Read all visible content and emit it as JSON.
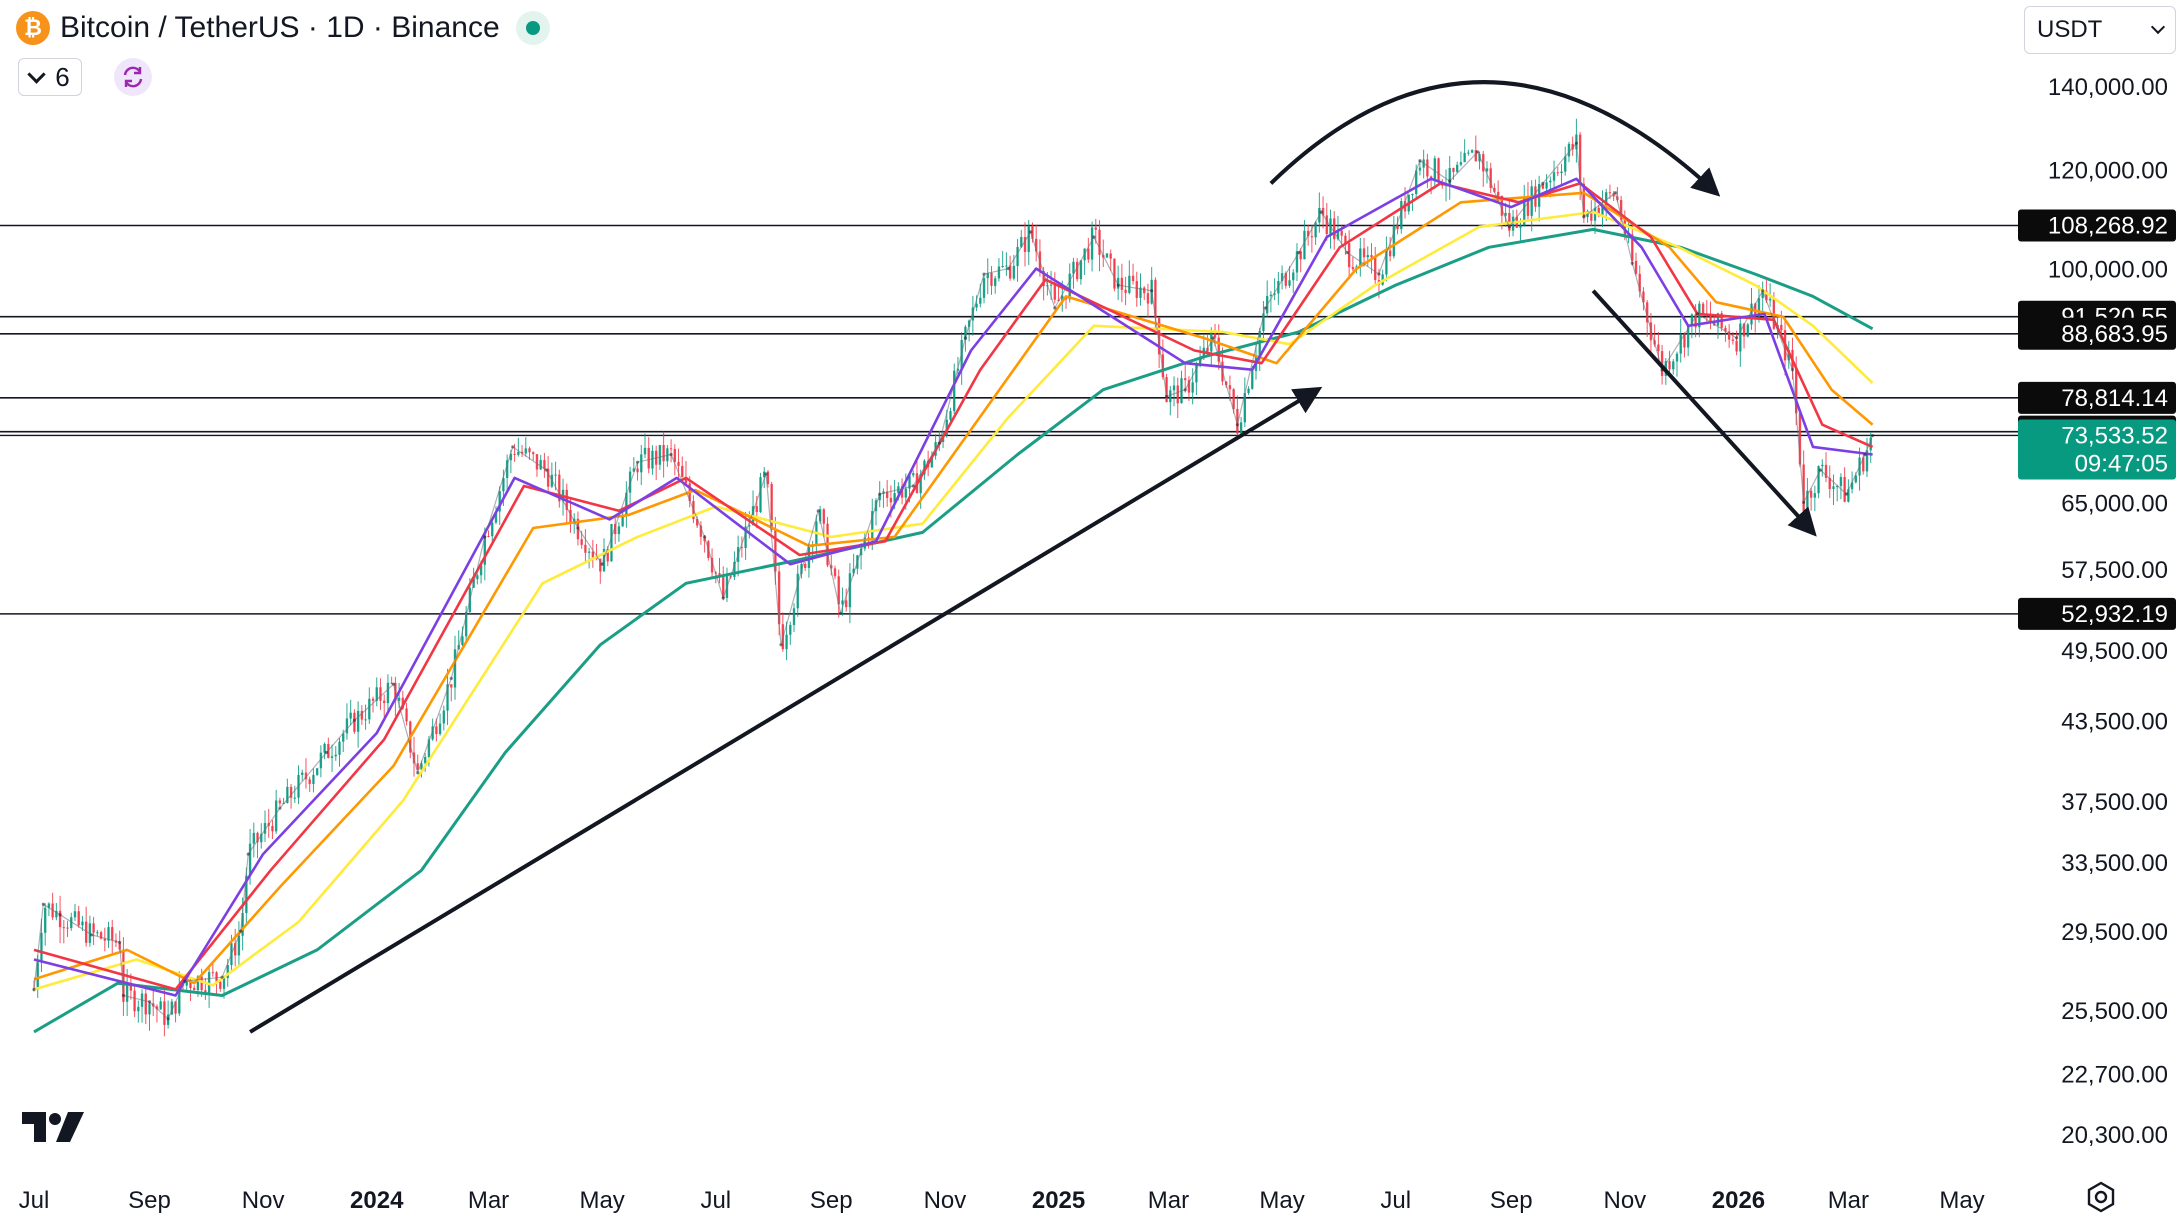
{
  "header": {
    "title": "Bitcoin / TetherUS · 1D · Binance",
    "collapse_count": "6",
    "currency": "USDT"
  },
  "icons": {
    "logo": "bitcoin-logo-icon",
    "live": "market-open-dot-icon",
    "collapse": "chevron-down-icon",
    "sync": "sync-icon",
    "brand": "tradingview-logo-icon",
    "settings": "gear-icon"
  },
  "colors": {
    "ema_fast": "#7b3fe4",
    "ema_mid": "#f23645",
    "ema_orange": "#ff9800",
    "ema_yellow": "#ffeb3b",
    "ema_slow": "#1b9e86",
    "up_candle": "#089981",
    "down_candle": "#f23645",
    "current_price_bg": "#089981"
  },
  "chart_data": {
    "type": "line",
    "scale": "log",
    "x_axis_labels": [
      {
        "label": "Jul",
        "date": "2023-07"
      },
      {
        "label": "Sep",
        "date": "2023-09"
      },
      {
        "label": "Nov",
        "date": "2023-11"
      },
      {
        "label": "2024",
        "date": "2024-01"
      },
      {
        "label": "Mar",
        "date": "2024-03"
      },
      {
        "label": "May",
        "date": "2024-05"
      },
      {
        "label": "Jul",
        "date": "2024-07"
      },
      {
        "label": "Sep",
        "date": "2024-09"
      },
      {
        "label": "Nov",
        "date": "2024-11"
      },
      {
        "label": "2025",
        "date": "2025-01"
      },
      {
        "label": "Mar",
        "date": "2025-03"
      },
      {
        "label": "May",
        "date": "2025-05"
      },
      {
        "label": "Jul",
        "date": "2025-07"
      },
      {
        "label": "Sep",
        "date": "2025-09"
      },
      {
        "label": "Nov",
        "date": "2025-11"
      },
      {
        "label": "2026",
        "date": "2026-01"
      },
      {
        "label": "Mar",
        "date": "2026-03"
      },
      {
        "label": "May",
        "date": "2026-05"
      }
    ],
    "y_axis_ticks": [
      "140,000.00",
      "120,000.00",
      "100,000.00",
      "65,000.00",
      "57,500.00",
      "49,500.00",
      "43,500.00",
      "37,500.00",
      "33,500.00",
      "29,500.00",
      "25,500.00",
      "22,700.00",
      "20,300.00"
    ],
    "y_range": [
      19500,
      148000
    ],
    "horizontal_levels": [
      {
        "label": "108,268.92",
        "value": 108268.92
      },
      {
        "label": "91,520.55",
        "value": 91520.55
      },
      {
        "label": "88,683.95",
        "value": 88683.95
      },
      {
        "label": "78,814.14",
        "value": 78814.14
      },
      {
        "label": "74,051.28",
        "value": 74051.28
      },
      {
        "label": "52,932.19",
        "value": 52932.19
      }
    ],
    "current_price": {
      "value": 73533.52,
      "label": "73,533.52",
      "countdown": "09:47:05"
    },
    "price_series": {
      "name": "",
      "points": [
        [
          "2023-07-01",
          26500
        ],
        [
          "2023-07-06",
          31000
        ],
        [
          "2023-07-15",
          30400
        ],
        [
          "2023-08-01",
          29300
        ],
        [
          "2023-08-16",
          28900
        ],
        [
          "2023-08-18",
          26200
        ],
        [
          "2023-09-01",
          25900
        ],
        [
          "2023-09-11",
          25100
        ],
        [
          "2023-09-20",
          26900
        ],
        [
          "2023-10-10",
          27100
        ],
        [
          "2023-10-20",
          29500
        ],
        [
          "2023-10-24",
          34000
        ],
        [
          "2023-11-10",
          37000
        ],
        [
          "2023-12-05",
          41000
        ],
        [
          "2023-12-20",
          43500
        ],
        [
          "2024-01-10",
          46500
        ],
        [
          "2024-01-23",
          39500
        ],
        [
          "2024-02-10",
          47000
        ],
        [
          "2024-02-28",
          61000
        ],
        [
          "2024-03-14",
          72000
        ],
        [
          "2024-04-01",
          69000
        ],
        [
          "2024-04-18",
          62000
        ],
        [
          "2024-05-01",
          58000
        ],
        [
          "2024-05-20",
          70000
        ],
        [
          "2024-06-07",
          71000
        ],
        [
          "2024-06-25",
          61000
        ],
        [
          "2024-07-05",
          54500
        ],
        [
          "2024-07-28",
          68500
        ],
        [
          "2024-08-05",
          50000
        ],
        [
          "2024-08-25",
          64000
        ],
        [
          "2024-09-06",
          53000
        ],
        [
          "2024-09-27",
          66000
        ],
        [
          "2024-10-15",
          67000
        ],
        [
          "2024-10-29",
          72500
        ],
        [
          "2024-11-12",
          88000
        ],
        [
          "2024-11-22",
          99000
        ],
        [
          "2024-12-05",
          100000
        ],
        [
          "2024-12-17",
          107000
        ],
        [
          "2024-12-30",
          93000
        ],
        [
          "2025-01-20",
          106000
        ],
        [
          "2025-02-02",
          97000
        ],
        [
          "2025-02-20",
          96000
        ],
        [
          "2025-02-28",
          79000
        ],
        [
          "2025-03-10",
          80000
        ],
        [
          "2025-03-25",
          88000
        ],
        [
          "2025-04-07",
          75000
        ],
        [
          "2025-04-22",
          93000
        ],
        [
          "2025-05-10",
          103000
        ],
        [
          "2025-05-22",
          111000
        ],
        [
          "2025-06-05",
          103000
        ],
        [
          "2025-06-22",
          99000
        ],
        [
          "2025-07-14",
          122000
        ],
        [
          "2025-07-30",
          117500
        ],
        [
          "2025-08-14",
          124000
        ],
        [
          "2025-08-31",
          108000
        ],
        [
          "2025-09-18",
          117000
        ],
        [
          "2025-10-06",
          126000
        ],
        [
          "2025-10-10",
          110000
        ],
        [
          "2025-10-27",
          115000
        ],
        [
          "2025-11-05",
          101000
        ],
        [
          "2025-11-21",
          83000
        ],
        [
          "2025-12-10",
          92000
        ],
        [
          "2025-12-31",
          88000
        ],
        [
          "2026-01-14",
          96000
        ],
        [
          "2026-01-30",
          83000
        ],
        [
          "2026-02-05",
          65000
        ],
        [
          "2026-02-14",
          69000
        ],
        [
          "2026-02-28",
          66000
        ],
        [
          "2026-03-10",
          71000
        ],
        [
          "2026-03-14",
          73533.52
        ]
      ]
    },
    "ema_series": [
      {
        "name": "",
        "color_key": "ema_fast",
        "points": [
          [
            "2023-07-01",
            28000
          ],
          [
            "2023-09-15",
            26200
          ],
          [
            "2023-11-01",
            34000
          ],
          [
            "2024-01-01",
            42500
          ],
          [
            "2024-03-15",
            68000
          ],
          [
            "2024-05-05",
            63000
          ],
          [
            "2024-06-10",
            68000
          ],
          [
            "2024-08-10",
            58000
          ],
          [
            "2024-09-25",
            60500
          ],
          [
            "2024-11-15",
            86000
          ],
          [
            "2024-12-20",
            100000
          ],
          [
            "2025-03-10",
            84000
          ],
          [
            "2025-04-15",
            83000
          ],
          [
            "2025-05-25",
            106000
          ],
          [
            "2025-07-20",
            118000
          ],
          [
            "2025-09-01",
            112000
          ],
          [
            "2025-10-06",
            118000
          ],
          [
            "2025-11-10",
            104000
          ],
          [
            "2025-12-05",
            90000
          ],
          [
            "2026-01-15",
            92000
          ],
          [
            "2026-02-10",
            72000
          ],
          [
            "2026-03-14",
            71000
          ]
        ]
      },
      {
        "name": "",
        "color_key": "ema_mid",
        "points": [
          [
            "2023-07-01",
            28500
          ],
          [
            "2023-09-15",
            26500
          ],
          [
            "2023-11-05",
            33000
          ],
          [
            "2024-01-05",
            42000
          ],
          [
            "2024-03-20",
            67000
          ],
          [
            "2024-05-10",
            64000
          ],
          [
            "2024-06-15",
            68000
          ],
          [
            "2024-08-15",
            59000
          ],
          [
            "2024-09-30",
            60500
          ],
          [
            "2024-11-20",
            83000
          ],
          [
            "2024-12-25",
            98000
          ],
          [
            "2025-03-15",
            86000
          ],
          [
            "2025-04-20",
            84000
          ],
          [
            "2025-06-01",
            104000
          ],
          [
            "2025-07-25",
            117000
          ],
          [
            "2025-09-05",
            113000
          ],
          [
            "2025-10-08",
            117000
          ],
          [
            "2025-11-15",
            106000
          ],
          [
            "2025-12-10",
            92000
          ],
          [
            "2026-01-20",
            91000
          ],
          [
            "2026-02-15",
            75000
          ],
          [
            "2026-03-14",
            72000
          ]
        ]
      },
      {
        "name": "",
        "color_key": "ema_orange",
        "points": [
          [
            "2023-07-01",
            27000
          ],
          [
            "2023-08-20",
            28500
          ],
          [
            "2023-09-25",
            26800
          ],
          [
            "2023-11-10",
            32000
          ],
          [
            "2024-01-10",
            40000
          ],
          [
            "2024-03-25",
            62000
          ],
          [
            "2024-05-15",
            63500
          ],
          [
            "2024-06-20",
            66500
          ],
          [
            "2024-08-20",
            60000
          ],
          [
            "2024-10-05",
            61000
          ],
          [
            "2024-11-25",
            78000
          ],
          [
            "2025-01-05",
            95000
          ],
          [
            "2025-03-20",
            88000
          ],
          [
            "2025-04-28",
            84000
          ],
          [
            "2025-06-10",
            100000
          ],
          [
            "2025-08-05",
            113000
          ],
          [
            "2025-10-10",
            115000
          ],
          [
            "2025-11-25",
            104000
          ],
          [
            "2025-12-20",
            94000
          ],
          [
            "2026-01-25",
            91500
          ],
          [
            "2026-02-20",
            80000
          ],
          [
            "2026-03-14",
            75000
          ]
        ]
      },
      {
        "name": "",
        "color_key": "ema_yellow",
        "points": [
          [
            "2023-07-01",
            26500
          ],
          [
            "2023-08-25",
            28000
          ],
          [
            "2023-10-05",
            26700
          ],
          [
            "2023-11-20",
            30000
          ],
          [
            "2024-01-15",
            37500
          ],
          [
            "2024-03-30",
            56000
          ],
          [
            "2024-05-20",
            61000
          ],
          [
            "2024-07-01",
            64500
          ],
          [
            "2024-09-01",
            61000
          ],
          [
            "2024-10-20",
            62500
          ],
          [
            "2024-12-05",
            76000
          ],
          [
            "2025-01-20",
            90000
          ],
          [
            "2025-03-30",
            89000
          ],
          [
            "2025-05-05",
            87000
          ],
          [
            "2025-06-20",
            97000
          ],
          [
            "2025-08-15",
            108000
          ],
          [
            "2025-10-15",
            111000
          ],
          [
            "2025-11-30",
            104000
          ],
          [
            "2026-01-10",
            97000
          ],
          [
            "2026-02-10",
            90000
          ],
          [
            "2026-03-14",
            81000
          ]
        ]
      },
      {
        "name": "",
        "color_key": "ema_slow",
        "points": [
          [
            "2023-07-01",
            24500
          ],
          [
            "2023-08-15",
            26800
          ],
          [
            "2023-10-10",
            26200
          ],
          [
            "2023-11-30",
            28500
          ],
          [
            "2024-01-25",
            33000
          ],
          [
            "2024-03-10",
            41000
          ],
          [
            "2024-04-30",
            50000
          ],
          [
            "2024-06-15",
            56000
          ],
          [
            "2024-08-15",
            58500
          ],
          [
            "2024-10-20",
            61500
          ],
          [
            "2024-12-10",
            71000
          ],
          [
            "2025-01-25",
            80000
          ],
          [
            "2025-03-20",
            85000
          ],
          [
            "2025-05-10",
            89000
          ],
          [
            "2025-07-01",
            97000
          ],
          [
            "2025-08-20",
            104000
          ],
          [
            "2025-10-15",
            107500
          ],
          [
            "2025-12-01",
            104000
          ],
          [
            "2026-01-10",
            99000
          ],
          [
            "2026-02-10",
            95000
          ],
          [
            "2026-03-14",
            89500
          ]
        ]
      }
    ],
    "annotations": [
      {
        "type": "trend-arrow",
        "from": [
          "2023-10-25",
          24500
        ],
        "to": [
          "2025-05-20",
          80000
        ]
      },
      {
        "type": "arc-arrow",
        "from": [
          "2025-04-25",
          117000
        ],
        "peak": [
          "2025-08-20",
          141000
        ],
        "to": [
          "2025-12-20",
          115000
        ]
      },
      {
        "type": "trend-arrow",
        "from": [
          "2025-10-15",
          96000
        ],
        "to": [
          "2026-02-10",
          61500
        ]
      }
    ],
    "grid": false,
    "legend": "none"
  }
}
